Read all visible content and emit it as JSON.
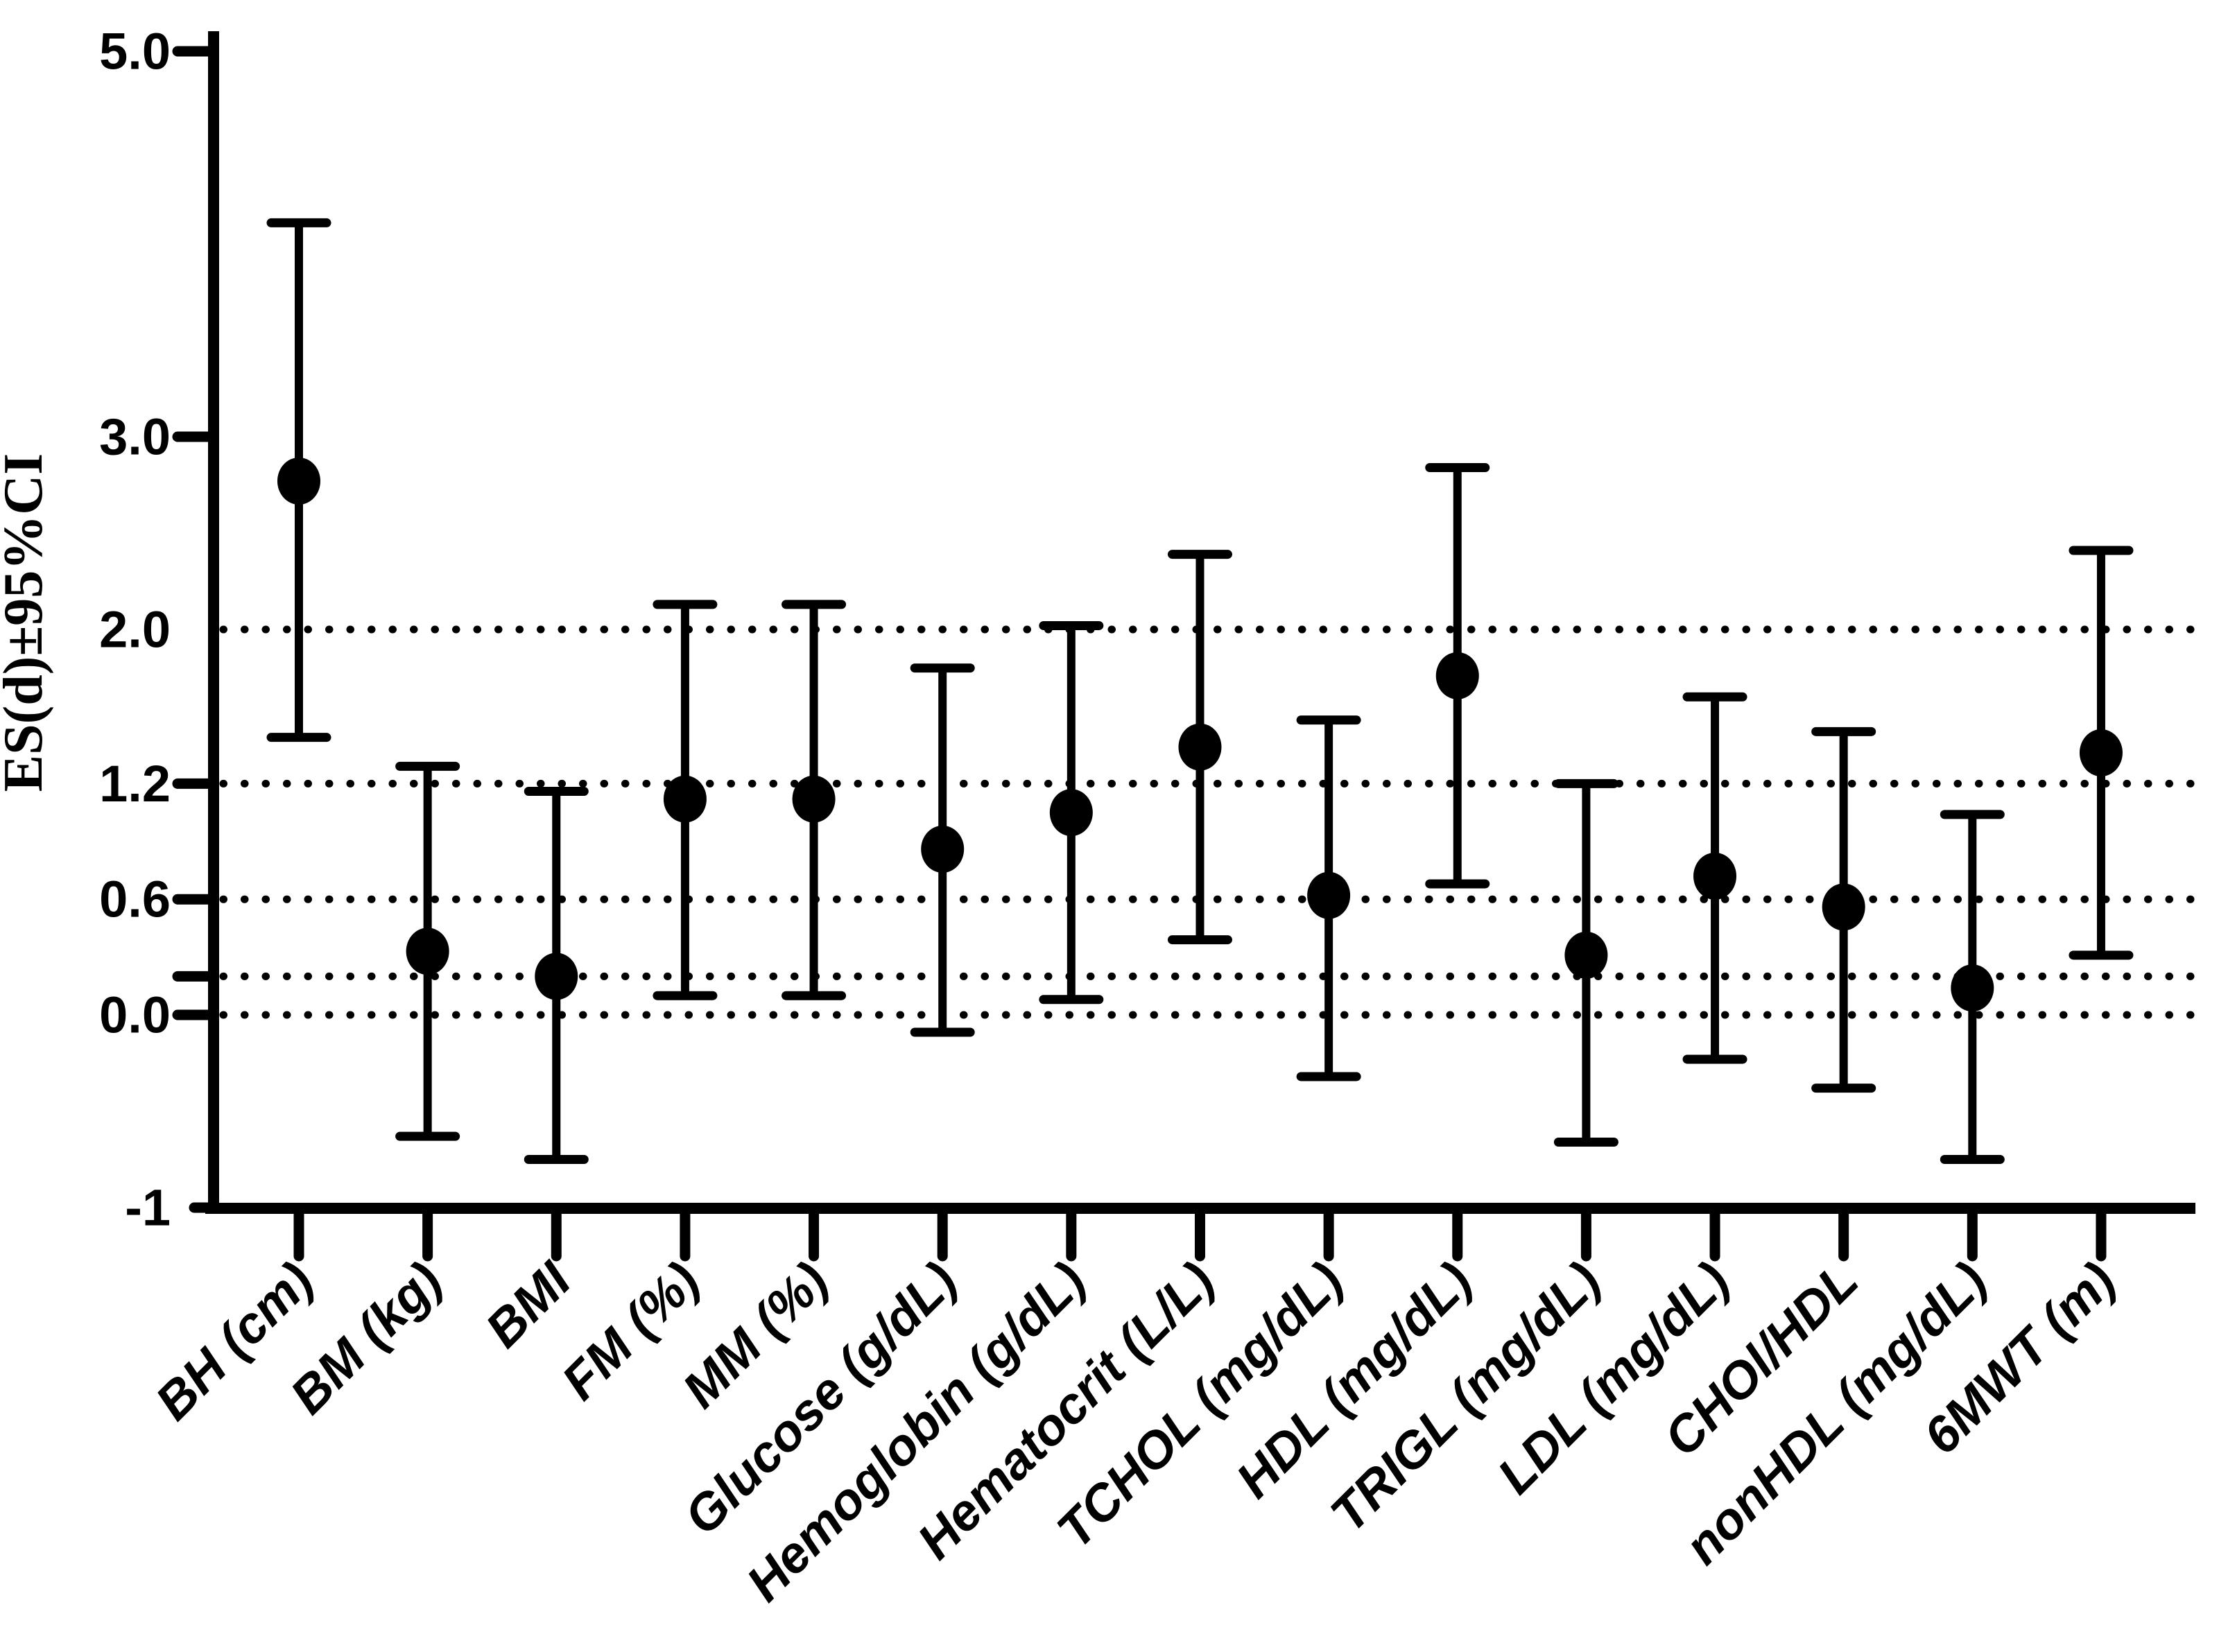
{
  "chart_data": {
    "type": "scatter",
    "subtype": "point-estimates-with-error-bars",
    "title": "",
    "xlabel": "",
    "ylabel": "ES(d)±95%CI",
    "ylim": [
      -1,
      5.0
    ],
    "yticks": [
      {
        "value": 5.0,
        "label": "5.0",
        "tick": true
      },
      {
        "value": 3.0,
        "label": "3.0",
        "tick": true
      },
      {
        "value": 2.0,
        "label": "2.0",
        "tick": false
      },
      {
        "value": 1.2,
        "label": "1.2",
        "tick": true
      },
      {
        "value": 0.6,
        "label": "0.6",
        "tick": true
      },
      {
        "value": 0.2,
        "label": "",
        "tick": true
      },
      {
        "value": 0.0,
        "label": "0.0",
        "tick": true
      },
      {
        "value": -1.0,
        "label": "-1",
        "tick": true
      }
    ],
    "gridlines": {
      "style": "dotted",
      "values": [
        2.0,
        1.2,
        0.6,
        0.2,
        0.0
      ]
    },
    "legend_position": "none",
    "marker": "filled-circle",
    "colors": {
      "foreground": "#000000",
      "background": "#ffffff"
    },
    "categories": [
      "BH (cm)",
      "BM (kg)",
      "BMI",
      "FM (%)",
      "MM (%)",
      "Glucose (g/dL)",
      "Hemoglobin (g/dL)",
      "Hematocrit (L/L)",
      "TCHOL (mg/dL)",
      "HDL (mg/dL)",
      "TRIGL (mg/dL)",
      "LDL (mg/dL)",
      "CHOl/HDL",
      "nonHDL (mg/dL)",
      "6MWT (m)"
    ],
    "series": [
      {
        "name": "ES(d) with 95% CI",
        "points": [
          {
            "category": "BH (cm)",
            "es": 2.77,
            "ci_low": 1.44,
            "ci_high": 4.11
          },
          {
            "category": "BM (kg)",
            "es": 0.33,
            "ci_low": -0.63,
            "ci_high": 1.29
          },
          {
            "category": "BMI",
            "es": 0.2,
            "ci_low": -0.75,
            "ci_high": 1.16
          },
          {
            "category": "FM (%)",
            "es": 1.12,
            "ci_low": 0.1,
            "ci_high": 2.13
          },
          {
            "category": "MM (%)",
            "es": 1.12,
            "ci_low": 0.1,
            "ci_high": 2.13
          },
          {
            "category": "Glucose (g/dL)",
            "es": 0.86,
            "ci_low": -0.09,
            "ci_high": 1.8
          },
          {
            "category": "Hemoglobin (g/dL)",
            "es": 1.05,
            "ci_low": 0.08,
            "ci_high": 2.02
          },
          {
            "category": "Hematocrit (L/L)",
            "es": 1.39,
            "ci_low": 0.39,
            "ci_high": 2.39
          },
          {
            "category": "TCHOL (mg/dL)",
            "es": 0.62,
            "ci_low": -0.32,
            "ci_high": 1.53
          },
          {
            "category": "HDL (mg/dL)",
            "es": 1.76,
            "ci_low": 0.68,
            "ci_high": 2.84
          },
          {
            "category": "TRIGL (mg/dL)",
            "es": 0.31,
            "ci_low": -0.66,
            "ci_high": 1.2
          },
          {
            "category": "LDL (mg/dL)",
            "es": 0.72,
            "ci_low": -0.23,
            "ci_high": 1.65
          },
          {
            "category": "CHOl/HDL",
            "es": 0.56,
            "ci_low": -0.38,
            "ci_high": 1.47
          },
          {
            "category": "nonHDL (mg/dL)",
            "es": 0.14,
            "ci_low": -0.75,
            "ci_high": 1.04
          },
          {
            "category": "6MWT (m)",
            "es": 1.36,
            "ci_low": 0.31,
            "ci_high": 2.41
          }
        ]
      }
    ]
  }
}
